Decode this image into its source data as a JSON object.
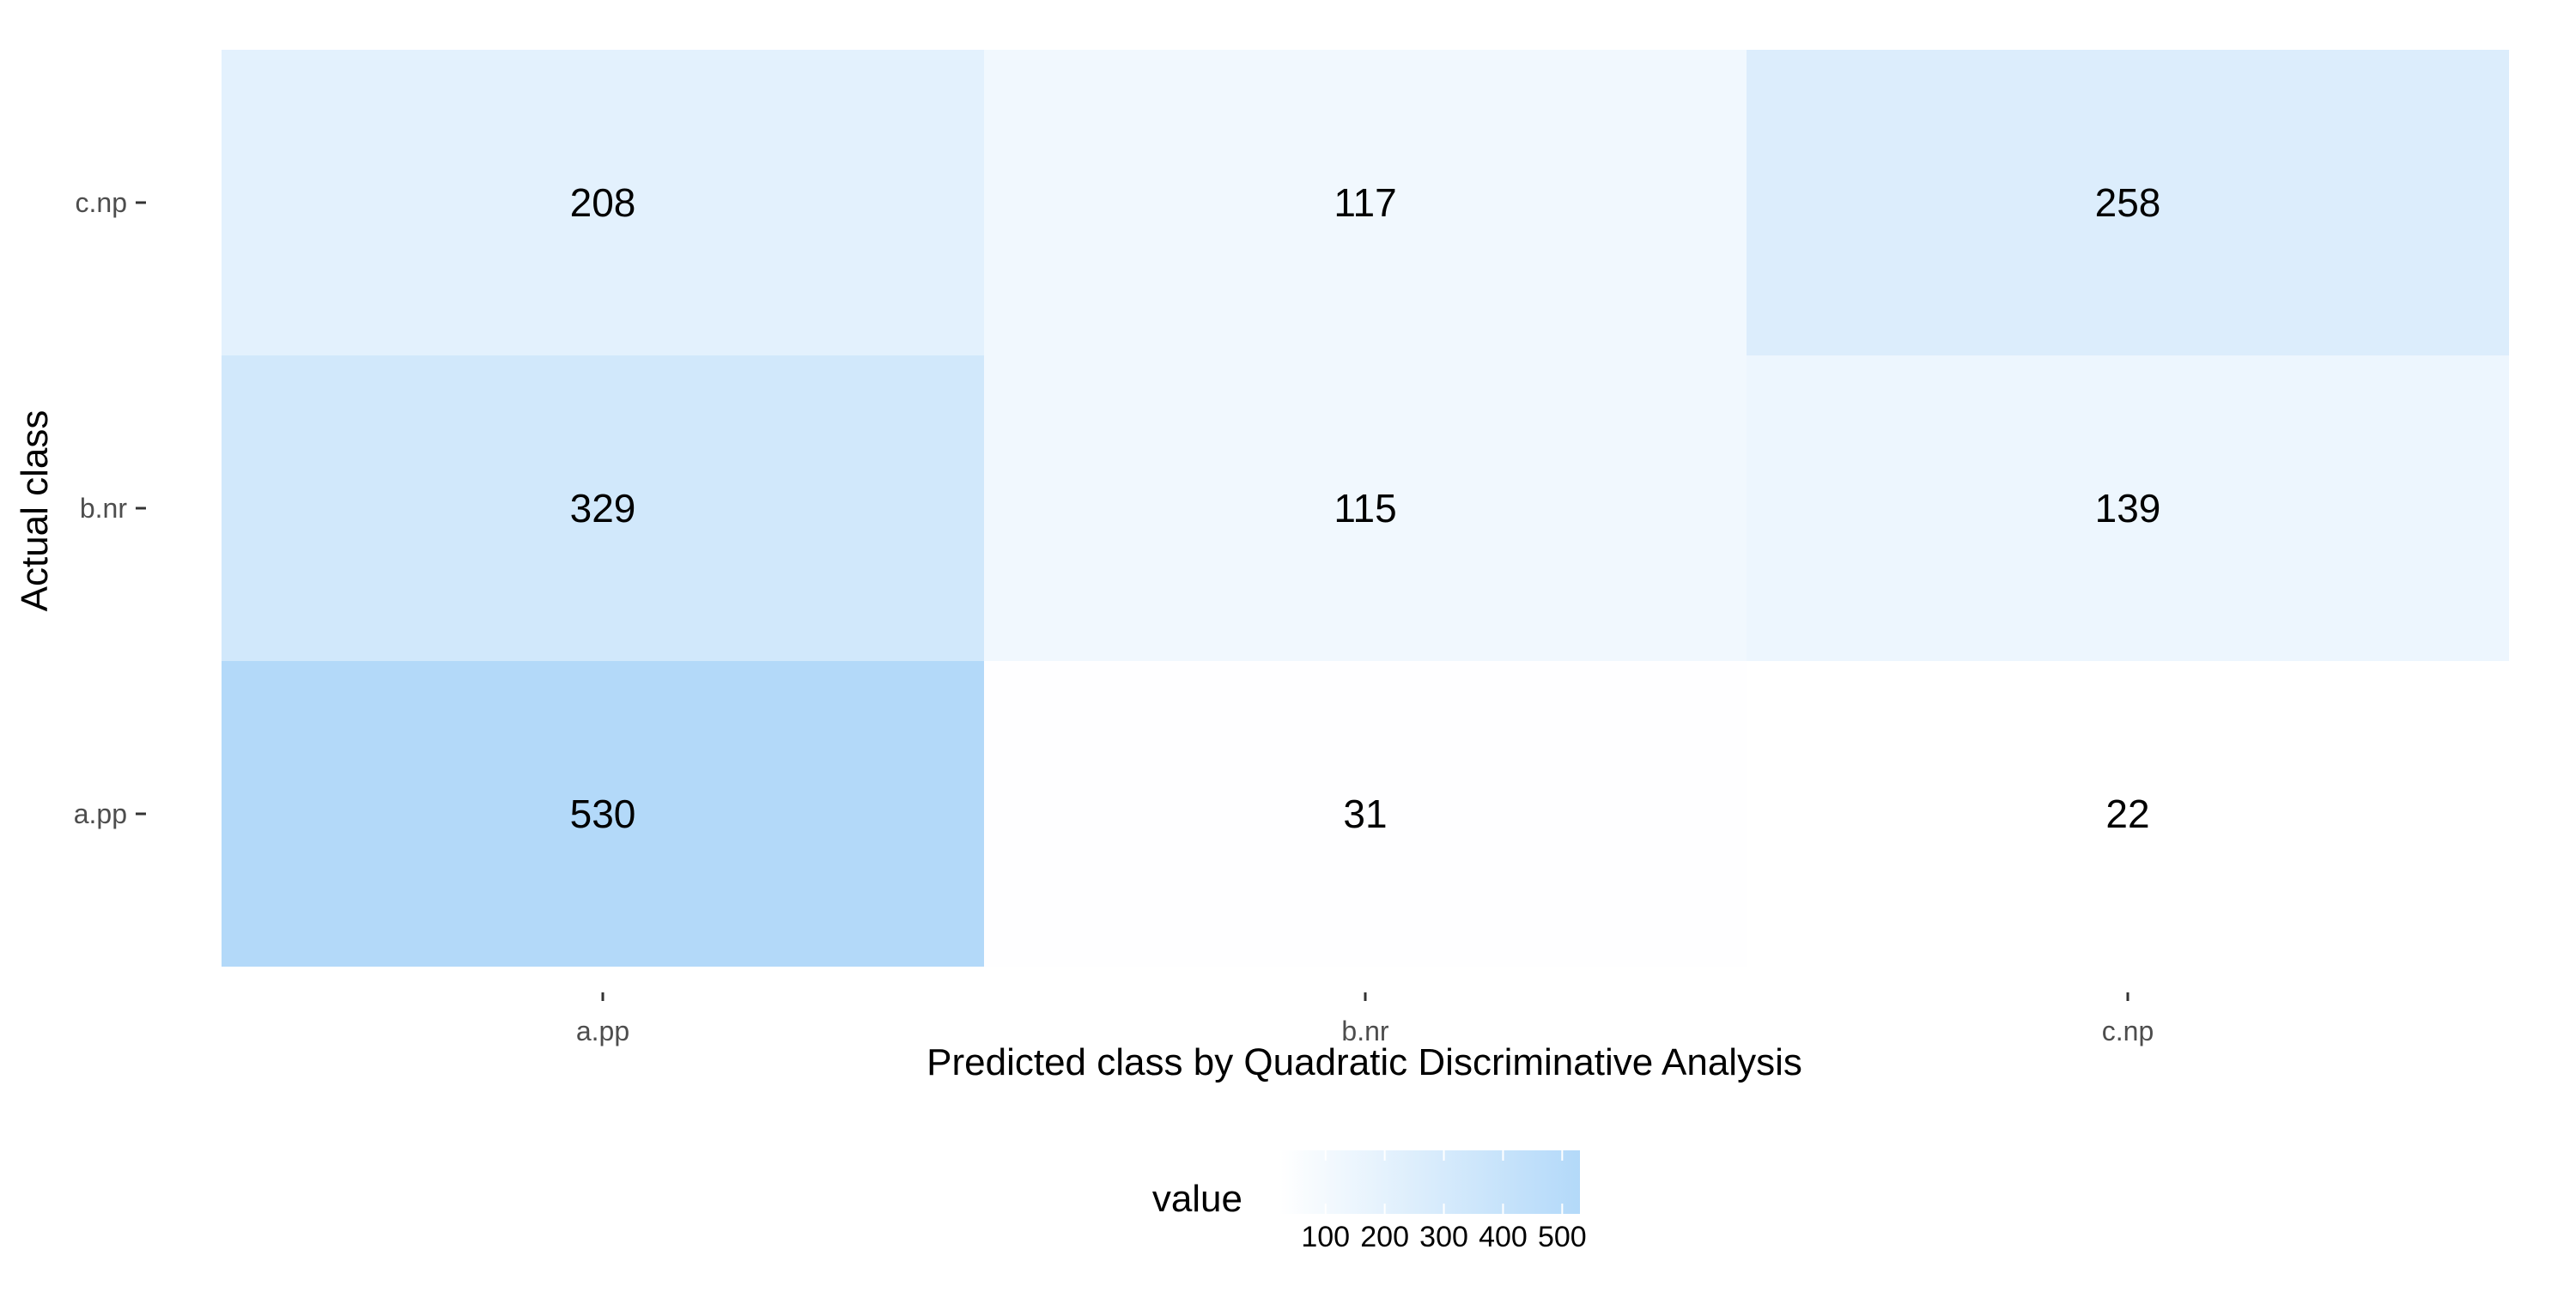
{
  "chart_data": {
    "type": "heatmap",
    "title": "",
    "xlabel": "Predicted class by Quadratic Discriminative Analysis",
    "ylabel": "Actual class",
    "x_categories": [
      "a.pp",
      "b.nr",
      "c.np"
    ],
    "y_categories": [
      "a.pp",
      "b.nr",
      "c.np"
    ],
    "cells": [
      {
        "actual": "c.np",
        "predicted": "a.pp",
        "value": 208
      },
      {
        "actual": "c.np",
        "predicted": "b.nr",
        "value": 117
      },
      {
        "actual": "c.np",
        "predicted": "c.np",
        "value": 258
      },
      {
        "actual": "b.nr",
        "predicted": "a.pp",
        "value": 329
      },
      {
        "actual": "b.nr",
        "predicted": "b.nr",
        "value": 115
      },
      {
        "actual": "b.nr",
        "predicted": "c.np",
        "value": 139
      },
      {
        "actual": "a.pp",
        "predicted": "a.pp",
        "value": 530
      },
      {
        "actual": "a.pp",
        "predicted": "b.nr",
        "value": 31
      },
      {
        "actual": "a.pp",
        "predicted": "c.np",
        "value": 22
      }
    ],
    "color_scale": {
      "low_color": "#ffffff",
      "high_color": "#b3d9f9",
      "min": 22,
      "max": 530
    },
    "legend": {
      "title": "value",
      "position": "bottom",
      "ticks": [
        100,
        200,
        300,
        400,
        500
      ],
      "tick_labels": [
        "100",
        "200",
        "300",
        "400",
        "500"
      ]
    },
    "grid": false
  }
}
